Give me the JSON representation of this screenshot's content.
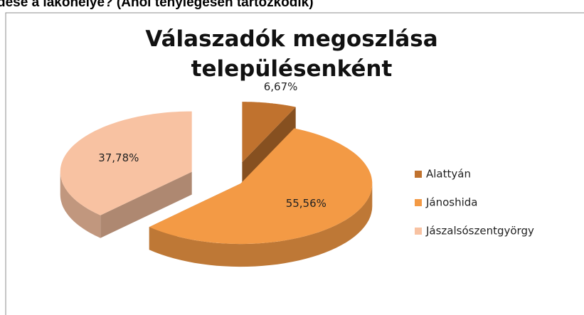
{
  "caption": "dése a lakóhelye? (Ahol ténylegesen tartózkodik)",
  "chart_data": {
    "type": "pie",
    "title": "Válaszadók megoszlása településenként",
    "categories": [
      "Alattyán",
      "Jánoshida",
      "Jászalsószentgyörgy"
    ],
    "values": [
      6.67,
      55.56,
      37.78
    ],
    "value_labels": [
      "6,67%",
      "55,56%",
      "37,78%"
    ],
    "colors": [
      "#c0722e",
      "#f39a45",
      "#f8c2a2"
    ],
    "legend": "right"
  }
}
